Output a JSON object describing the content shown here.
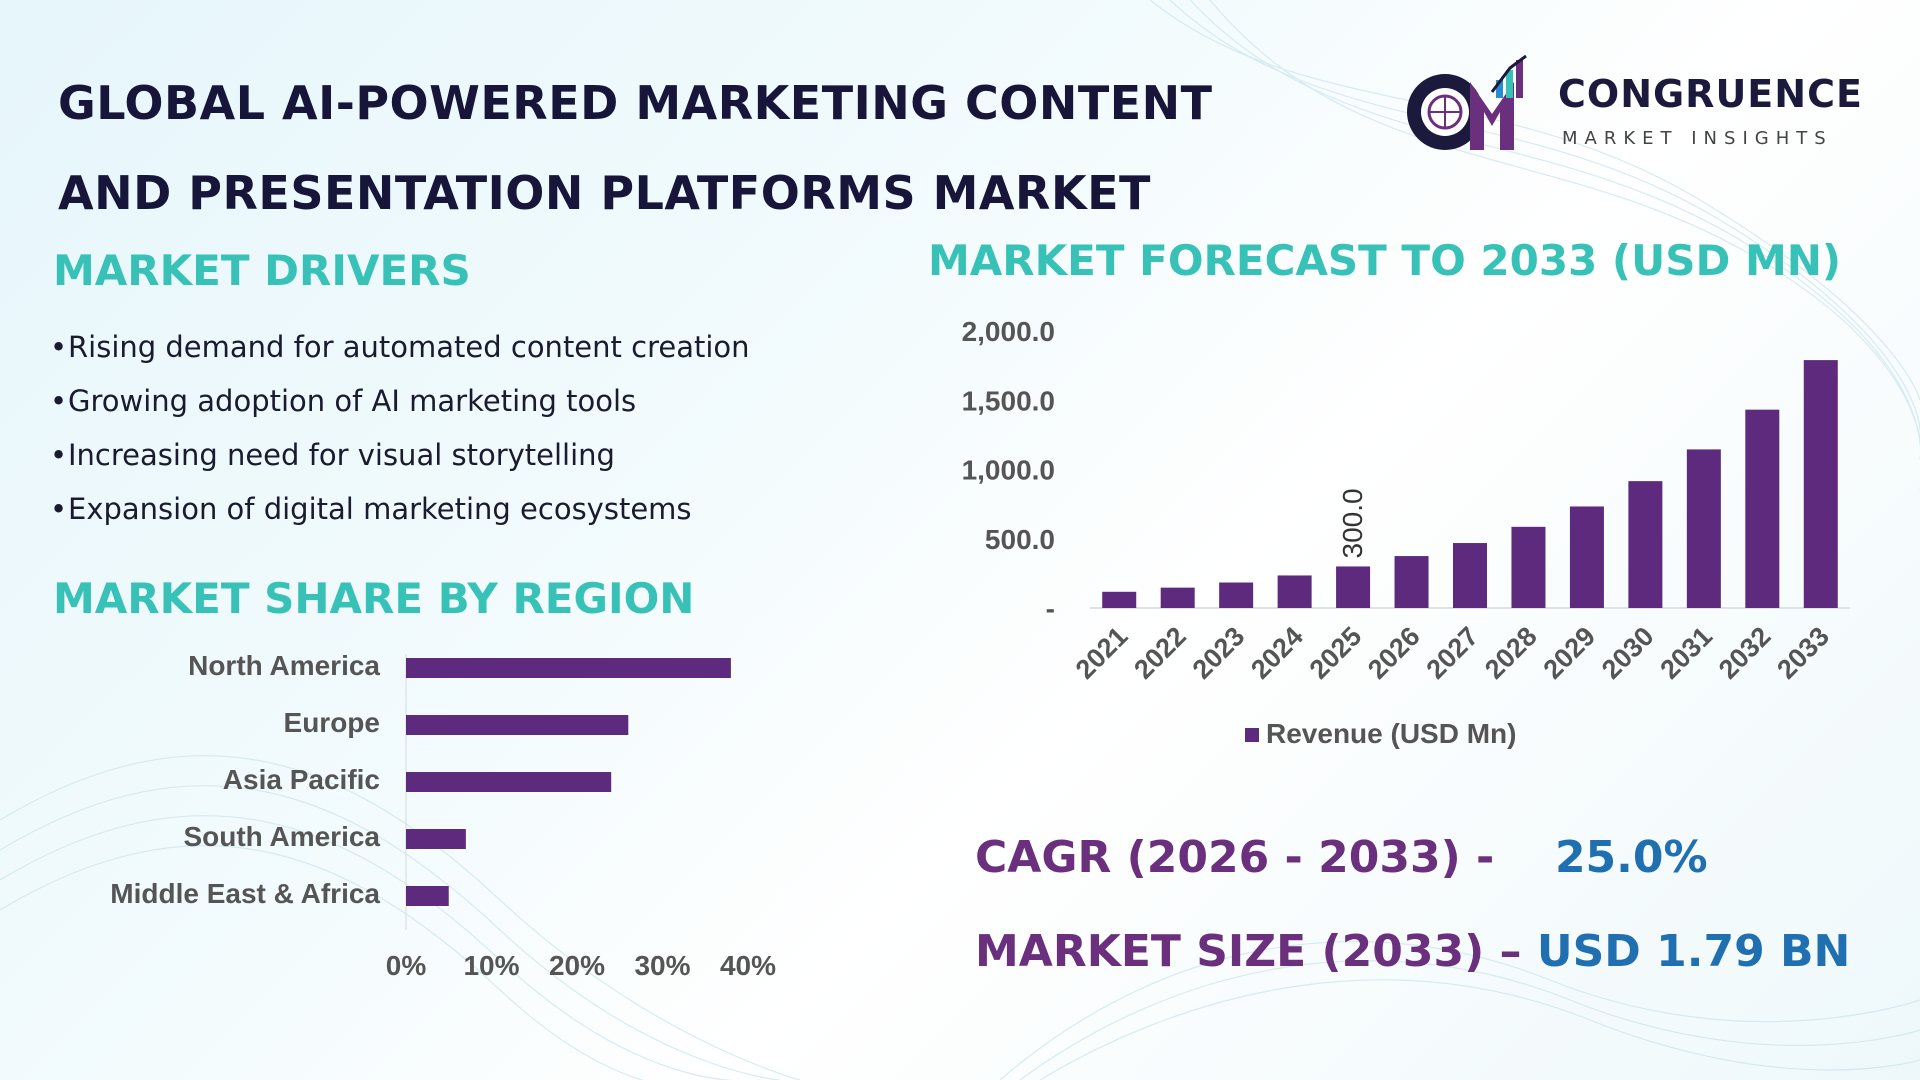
{
  "title": {
    "line1": "GLOBAL AI-POWERED MARKETING CONTENT",
    "line2": "AND PRESENTATION PLATFORMS MARKET"
  },
  "logo": {
    "name": "CONGRUENCE",
    "tagline": "MARKET INSIGHTS",
    "mark_text": "CM"
  },
  "market_drivers": {
    "heading": "MARKET DRIVERS",
    "items": [
      "Rising demand for automated content creation",
      "Growing adoption of AI marketing tools",
      "Increasing need for visual storytelling",
      "Expansion of digital marketing ecosystems"
    ]
  },
  "region_section": {
    "heading": "MARKET SHARE BY REGION"
  },
  "forecast_section": {
    "heading": "MARKET FORECAST TO 2033 (USD MN)"
  },
  "kpis": {
    "cagr_label": "CAGR (2026 - 2033) -",
    "cagr_value": "25.0%",
    "size_label": "MARKET SIZE (2033) –",
    "size_value": "USD 1.79 BN"
  },
  "colors": {
    "bar": "#5e2a7e",
    "heading": "#38c2b7",
    "title": "#17163a",
    "kpi_label": "#6a2f7d",
    "kpi_value": "#1f6fb1"
  },
  "chart_data": [
    {
      "type": "bar",
      "orientation": "horizontal",
      "categories": [
        "North America",
        "Europe",
        "Asia Pacific",
        "South America",
        "Middle East & Africa"
      ],
      "values": [
        38,
        26,
        24,
        7,
        5
      ],
      "xlim": [
        0,
        40
      ],
      "x_ticks": [
        "0%",
        "10%",
        "20%",
        "30%",
        "40%"
      ],
      "grid": false
    },
    {
      "type": "bar",
      "categories": [
        "2021",
        "2022",
        "2023",
        "2024",
        "2025",
        "2026",
        "2027",
        "2028",
        "2029",
        "2030",
        "2031",
        "2032",
        "2033"
      ],
      "series": [
        {
          "name": "Revenue (USD Mn)",
          "values": [
            117,
            147,
            184,
            235,
            300,
            375,
            469,
            586,
            733,
            916,
            1145,
            1432,
            1790
          ]
        }
      ],
      "ylim": [
        0,
        2000
      ],
      "y_ticks": [
        "-",
        "500.0",
        "1,000.0",
        "1,500.0",
        "2,000.0"
      ],
      "data_labels": [
        {
          "category": "2025",
          "text": "300.0"
        }
      ],
      "legend": "bottom",
      "grid": false
    }
  ]
}
